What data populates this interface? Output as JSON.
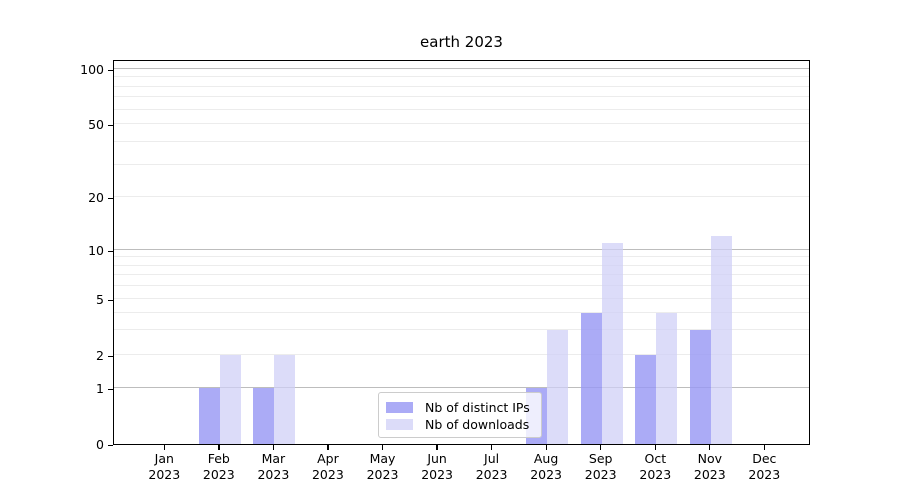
{
  "chart_data": {
    "type": "bar",
    "title": "earth 2023",
    "categories": [
      "Jan 2023",
      "Feb 2023",
      "Mar 2023",
      "Apr 2023",
      "May 2023",
      "Jun 2023",
      "Jul 2023",
      "Aug 2023",
      "Sep 2023",
      "Oct 2023",
      "Nov 2023",
      "Dec 2023"
    ],
    "series": [
      {
        "name": "Nb of distinct IPs",
        "color": "rgba(152,152,244,0.82)",
        "values": [
          0,
          1,
          1,
          0,
          0,
          0,
          0,
          1,
          4,
          2,
          3,
          0
        ]
      },
      {
        "name": "Nb of downloads",
        "color": "rgba(206,206,247,0.72)",
        "values": [
          0,
          2,
          2,
          0,
          0,
          0,
          0,
          3,
          11,
          4,
          12,
          0
        ]
      }
    ],
    "yscale": "log",
    "ylim": [
      0,
      100
    ],
    "ytick_labels": [
      "0",
      "1",
      "2",
      "5",
      "10",
      "20",
      "50",
      "100"
    ],
    "grid": true,
    "legend_position": "lower center",
    "background": "#ffffff"
  }
}
